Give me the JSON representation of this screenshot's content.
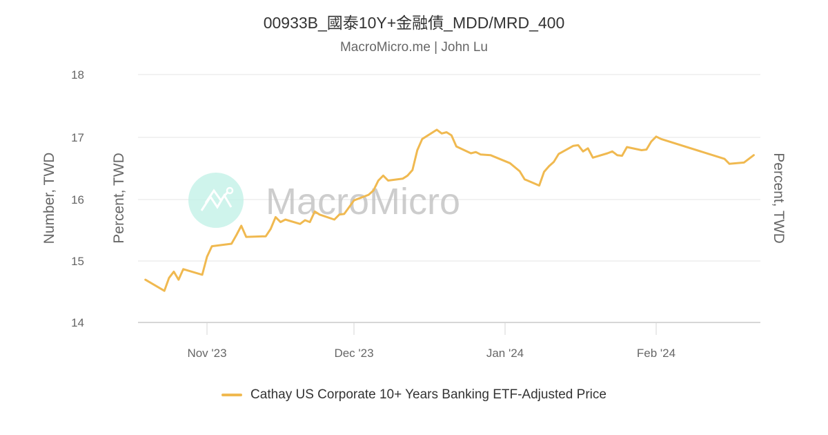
{
  "header": {
    "title": "00933B_國泰10Y+金融債_MDD/MRD_400",
    "subtitle": "MacroMicro.me | John Lu"
  },
  "watermark": {
    "text": "MacroMicro",
    "icon": "macromicro-logo-icon",
    "icon_color": "#bff0e5"
  },
  "axes": {
    "y_left_outer_title": "Number, TWD",
    "y_left_inner_title": "Percent, TWD",
    "y_right_title": "Percent, TWD",
    "y_ticks": [
      "18",
      "17",
      "16",
      "15",
      "14"
    ],
    "x_ticks": [
      "Nov '23",
      "Dec '23",
      "Jan '24",
      "Feb '24"
    ]
  },
  "legend": {
    "items": [
      {
        "label": "Cathay US Corporate 10+ Years Banking ETF-Adjusted Price",
        "color": "#f0b950"
      }
    ]
  },
  "colors": {
    "series": "#f0b950",
    "grid": "#e6e6e6",
    "text": "#666666"
  },
  "chart_data": {
    "type": "line",
    "title": "00933B_國泰10Y+金融債_MDD/MRD_400",
    "subtitle": "MacroMicro.me | John Lu",
    "xlabel": "",
    "ylabel": "Number, TWD / Percent, TWD",
    "ylim": [
      14,
      18
    ],
    "y_ticks": [
      14,
      15,
      16,
      17,
      18
    ],
    "x_ticks": [
      "Nov '23",
      "Dec '23",
      "Jan '24",
      "Feb '24"
    ],
    "grid": true,
    "legend_position": "bottom",
    "series": [
      {
        "name": "Cathay US Corporate 10+ Years Banking ETF-Adjusted Price",
        "color": "#f0b950",
        "x": [
          "2023-10-19",
          "2023-10-23",
          "2023-10-24",
          "2023-10-25",
          "2023-10-26",
          "2023-10-27",
          "2023-10-31",
          "2023-11-01",
          "2023-11-02",
          "2023-11-06",
          "2023-11-07",
          "2023-11-08",
          "2023-11-09",
          "2023-11-13",
          "2023-11-14",
          "2023-11-15",
          "2023-11-16",
          "2023-11-17",
          "2023-11-20",
          "2023-11-21",
          "2023-11-22",
          "2023-11-23",
          "2023-11-24",
          "2023-11-27",
          "2023-11-28",
          "2023-11-29",
          "2023-11-30",
          "2023-12-01",
          "2023-12-04",
          "2023-12-05",
          "2023-12-06",
          "2023-12-07",
          "2023-12-08",
          "2023-12-11",
          "2023-12-12",
          "2023-12-13",
          "2023-12-14",
          "2023-12-15",
          "2023-12-18",
          "2023-12-19",
          "2023-12-20",
          "2023-12-21",
          "2023-12-22",
          "2023-12-25",
          "2023-12-26",
          "2023-12-27",
          "2023-12-29",
          "2024-01-02",
          "2024-01-04",
          "2024-01-05",
          "2024-01-08",
          "2024-01-09",
          "2024-01-10",
          "2024-01-11",
          "2024-01-12",
          "2024-01-15",
          "2024-01-16",
          "2024-01-17",
          "2024-01-18",
          "2024-01-19",
          "2024-01-22",
          "2024-01-23",
          "2024-01-24",
          "2024-01-25",
          "2024-01-26",
          "2024-01-29",
          "2024-01-30",
          "2024-01-31",
          "2024-02-01",
          "2024-02-02",
          "2024-02-15",
          "2024-02-16",
          "2024-02-19",
          "2024-02-21"
        ],
        "values": [
          14.69,
          14.51,
          14.72,
          14.82,
          14.69,
          14.86,
          14.77,
          15.06,
          15.23,
          15.27,
          15.41,
          15.56,
          15.38,
          15.39,
          15.51,
          15.7,
          15.62,
          15.66,
          15.59,
          15.65,
          15.62,
          15.79,
          15.74,
          15.66,
          15.74,
          15.75,
          15.86,
          15.97,
          16.06,
          16.13,
          16.29,
          16.37,
          16.29,
          16.32,
          16.37,
          16.46,
          16.78,
          16.96,
          17.11,
          17.05,
          17.07,
          17.02,
          16.84,
          16.73,
          16.75,
          16.71,
          16.7,
          16.57,
          16.44,
          16.31,
          16.21,
          16.43,
          16.52,
          16.59,
          16.72,
          16.85,
          16.86,
          16.76,
          16.81,
          16.66,
          16.73,
          16.76,
          16.7,
          16.69,
          16.83,
          16.78,
          16.79,
          16.92,
          17.0,
          16.96,
          16.64,
          16.56,
          16.58,
          16.7
        ]
      }
    ]
  }
}
